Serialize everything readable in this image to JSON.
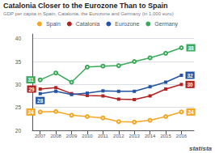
{
  "chart_data": {
    "type": "line",
    "title": "Catalonia Closer to the Eurozone Than to Spain",
    "subtitle": "GDP per capita in Spain, Catalonia, the Eurozone and Germany (in 1,000 euro)",
    "annotations": [
      {
        "text": "statista"
      }
    ],
    "x": [
      2007,
      2008,
      2009,
      2010,
      2011,
      2012,
      2013,
      2014,
      2015,
      2016
    ],
    "xlim": [
      2006.5,
      2016.8
    ],
    "xticks": [
      2007,
      2008,
      2009,
      2010,
      2011,
      2012,
      2013,
      2014,
      2015,
      2016
    ],
    "ylim": [
      20,
      41
    ],
    "yticks": [
      20,
      25,
      30,
      35,
      40
    ],
    "grid": true,
    "legend": "top",
    "series": [
      {
        "name": "Spain",
        "color": "#f5a623",
        "marker": "open_circle",
        "values": [
          24.0,
          24.1,
          23.3,
          23.0,
          22.7,
          21.9,
          21.8,
          22.2,
          23.0,
          24.0
        ],
        "value_labels": [
          "24",
          null,
          null,
          null,
          null,
          null,
          null,
          null,
          null,
          "24"
        ]
      },
      {
        "name": "Catalonia",
        "color": "#b22222",
        "marker": "square",
        "values": [
          29.0,
          29.3,
          28.0,
          27.6,
          27.5,
          26.8,
          26.7,
          27.5,
          29.0,
          30.0
        ],
        "value_labels": [
          "29",
          null,
          null,
          null,
          null,
          null,
          null,
          null,
          null,
          "30"
        ]
      },
      {
        "name": "Eurozone",
        "color": "#2455a4",
        "marker": "square",
        "values": [
          28.0,
          28.5,
          27.8,
          28.1,
          28.6,
          28.5,
          28.5,
          29.5,
          30.5,
          32.0
        ],
        "value_labels": [
          "28",
          null,
          null,
          null,
          null,
          null,
          null,
          null,
          null,
          "32"
        ]
      },
      {
        "name": "Germany",
        "color": "#3aaa5a",
        "marker": "open_circle",
        "values": [
          31.0,
          32.5,
          30.5,
          33.8,
          34.0,
          34.1,
          35.0,
          35.8,
          36.8,
          38.0
        ],
        "value_labels": [
          "31",
          null,
          null,
          null,
          null,
          null,
          null,
          null,
          null,
          "38"
        ]
      }
    ]
  }
}
